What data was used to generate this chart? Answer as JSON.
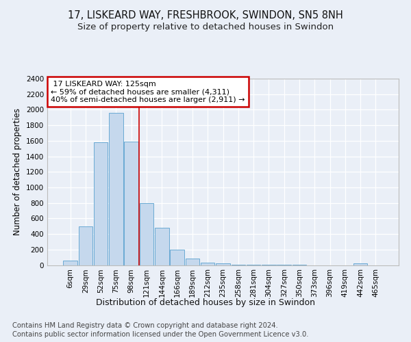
{
  "title1": "17, LISKEARD WAY, FRESHBROOK, SWINDON, SN5 8NH",
  "title2": "Size of property relative to detached houses in Swindon",
  "xlabel": "Distribution of detached houses by size in Swindon",
  "ylabel": "Number of detached properties",
  "categories": [
    "6sqm",
    "29sqm",
    "52sqm",
    "75sqm",
    "98sqm",
    "121sqm",
    "144sqm",
    "166sqm",
    "189sqm",
    "212sqm",
    "235sqm",
    "258sqm",
    "281sqm",
    "304sqm",
    "327sqm",
    "350sqm",
    "373sqm",
    "396sqm",
    "419sqm",
    "442sqm",
    "465sqm"
  ],
  "bar_values": [
    60,
    500,
    1580,
    1960,
    1590,
    800,
    480,
    200,
    85,
    30,
    25,
    5,
    5,
    5,
    5,
    5,
    0,
    0,
    0,
    25,
    0
  ],
  "bar_color": "#c5d8ed",
  "bar_edge_color": "#6aaad4",
  "annotation_label": "17 LISKEARD WAY: 125sqm",
  "annotation_line1": "← 59% of detached houses are smaller (4,311)",
  "annotation_line2": "40% of semi-detached houses are larger (2,911) →",
  "box_color": "#cc0000",
  "vline_color": "#cc0000",
  "vline_x": 4.5,
  "ylim": [
    0,
    2400
  ],
  "yticks": [
    0,
    200,
    400,
    600,
    800,
    1000,
    1200,
    1400,
    1600,
    1800,
    2000,
    2200,
    2400
  ],
  "footer1": "Contains HM Land Registry data © Crown copyright and database right 2024.",
  "footer2": "Contains public sector information licensed under the Open Government Licence v3.0.",
  "bg_color": "#eaeff7",
  "plot_bg_color": "#eaeff7",
  "grid_color": "#ffffff",
  "title1_fontsize": 10.5,
  "title2_fontsize": 9.5,
  "xlabel_fontsize": 9,
  "ylabel_fontsize": 8.5,
  "tick_fontsize": 7.5,
  "footer_fontsize": 7.2
}
